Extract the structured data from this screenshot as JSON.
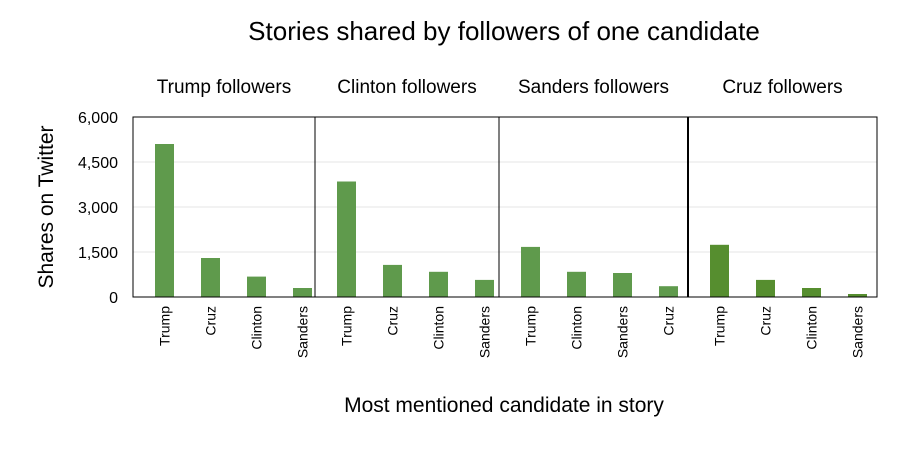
{
  "chart_data": {
    "type": "bar",
    "title": "Stories shared by followers of one candidate",
    "xlabel": "Most mentioned candidate in story",
    "ylabel": "Shares on Twitter",
    "ylim": [
      0,
      6000
    ],
    "yticks": [
      "6,000",
      "4,500",
      "3,000",
      "1,500",
      "0"
    ],
    "ytick_values": [
      6000,
      4500,
      3000,
      1500,
      0
    ],
    "grid": true,
    "bar_color": "#5f9a4c",
    "bar_color_last_panel": "#568e2f",
    "panels": [
      {
        "label": "Trump followers",
        "categories": [
          "Trump",
          "Cruz",
          "Clinton",
          "Sanders"
        ],
        "values": [
          5100,
          1300,
          680,
          300
        ]
      },
      {
        "label": "Clinton followers",
        "categories": [
          "Trump",
          "Cruz",
          "Clinton",
          "Sanders"
        ],
        "values": [
          3850,
          1070,
          840,
          570
        ]
      },
      {
        "label": "Sanders followers",
        "categories": [
          "Trump",
          "Clinton",
          "Sanders",
          "Cruz"
        ],
        "values": [
          1670,
          840,
          800,
          360
        ]
      },
      {
        "label": "Cruz followers",
        "categories": [
          "Trump",
          "Cruz",
          "Clinton",
          "Sanders"
        ],
        "values": [
          1740,
          570,
          300,
          100
        ]
      }
    ]
  }
}
